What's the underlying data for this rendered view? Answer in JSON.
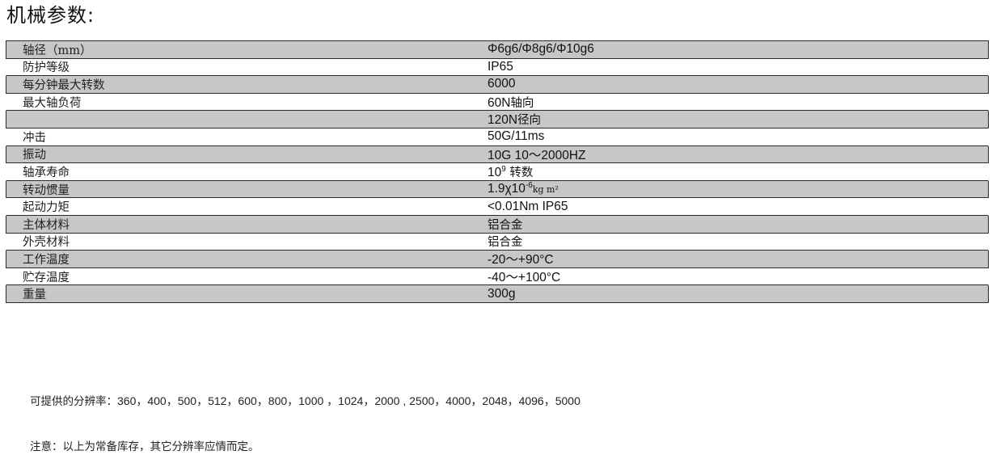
{
  "title": "机械参数:",
  "specs": [
    {
      "label": "轴径（mm）",
      "value": "Φ6g6/Φ8g6/Φ10g6"
    },
    {
      "label": "防护等级",
      "value": "IP65"
    },
    {
      "label": "每分钟最大转数",
      "value": "6000"
    },
    {
      "label": "最大轴负荷",
      "value_num": "60N",
      "value_cjk": "轴向"
    },
    {
      "label": "",
      "value_num": "120N",
      "value_cjk": "径向"
    },
    {
      "label": "冲击",
      "value": "50G/11ms"
    },
    {
      "label": "振动",
      "value": "10G  10～2000HZ"
    },
    {
      "label": "轴承寿命",
      "value_base": "10",
      "value_sup": "9",
      "value_cjk": " 转数"
    },
    {
      "label": "转动惯量",
      "value_base": "1.9χ10",
      "value_sup": "-6",
      "value_unit": "kg m²"
    },
    {
      "label": "起动力矩",
      "value": "<0.01Nm IP65"
    },
    {
      "label": "主体材料",
      "value_cjk": "铝合金"
    },
    {
      "label": "外壳材料",
      "value_cjk": "铝合金"
    },
    {
      "label": "工作温度",
      "value": "-20～+90°C"
    },
    {
      "label": "贮存温度",
      "value": "-40～+100°C"
    },
    {
      "label": "重量",
      "value": "300g"
    }
  ],
  "notes": {
    "resolutions_label": "可提供的分辨率：",
    "resolutions_values": "360，400，500，512，600，800，1000 ，1024，2000 , 2500，4000，2048，4096，5000",
    "stock_note": "注意：以上为常备库存，其它分辨率应情而定。"
  }
}
